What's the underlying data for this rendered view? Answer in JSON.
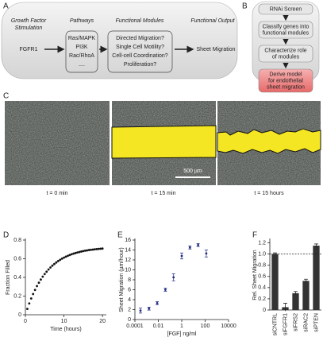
{
  "panel_labels": [
    "A",
    "B",
    "C",
    "D",
    "E",
    "F"
  ],
  "panel_a": {
    "stimulation_title": [
      "Growth Factor",
      "Stimulation"
    ],
    "receptor": "FGFR1",
    "pathways_title": "Pathways",
    "pathways": [
      "Ras/MAPK",
      "PI3K",
      "Rac/RhoA",
      "...."
    ],
    "modules_title": "Functional Modules",
    "modules": [
      "Directed Migration?",
      "Single Cell Motility?",
      "Cell-cell Coordination?",
      "Proliferation?"
    ],
    "output_title": "Functional Output",
    "output": "Sheet Migration"
  },
  "panel_b": {
    "steps": [
      [
        "RNAi Screen"
      ],
      [
        "Classify genes into",
        "functional modules"
      ],
      [
        "Characterize role",
        "of modules"
      ],
      [
        "Derive model",
        "for endothelial",
        "sheet migration"
      ]
    ]
  },
  "panel_c": {
    "times": [
      "t = 0 min",
      "t = 15 min",
      "t = 15 hours"
    ],
    "scale_bar": "500 µm"
  },
  "chart_data": [
    {
      "type": "scatter",
      "x_label": "Time (hours)",
      "y_label": "Fraction Filled",
      "color": "#111",
      "x": [
        0.5,
        1,
        1.5,
        2,
        2.5,
        3,
        3.5,
        4,
        4.5,
        5,
        5.5,
        6,
        6.5,
        7,
        7.5,
        8,
        8.5,
        9,
        9.5,
        10,
        10.5,
        11,
        11.5,
        12,
        12.5,
        13,
        13.5,
        14,
        14.5,
        15,
        15.5,
        16,
        16.5,
        17,
        17.5,
        18,
        18.5,
        19,
        19.5,
        20
      ],
      "values": [
        0.063,
        0.121,
        0.174,
        0.222,
        0.266,
        0.307,
        0.343,
        0.377,
        0.408,
        0.436,
        0.461,
        0.485,
        0.506,
        0.526,
        0.543,
        0.56,
        0.575,
        0.588,
        0.601,
        0.612,
        0.622,
        0.631,
        0.64,
        0.648,
        0.655,
        0.661,
        0.667,
        0.672,
        0.677,
        0.682,
        0.686,
        0.689,
        0.693,
        0.696,
        0.698,
        0.701,
        0.703,
        0.705,
        0.707,
        0.709
      ],
      "xlim": [
        0,
        21
      ],
      "xticks": [
        0,
        10,
        20
      ],
      "ylim": [
        0,
        0.8
      ],
      "yticks": [
        0,
        0.2,
        0.4,
        0.6,
        0.8
      ]
    },
    {
      "type": "scatter",
      "x_label": "[FGF] ng/ml",
      "y_label": "Sheet Migration (µm/hour)",
      "color": "#1f2a80",
      "x_scale": "log",
      "x": [
        0.0003,
        0.0016,
        0.008,
        0.04,
        0.2,
        1,
        5,
        25,
        125
      ],
      "values": [
        1.8,
        2.2,
        3.3,
        6.0,
        8.5,
        12.8,
        14.5,
        15.0,
        13.3
      ],
      "errors": [
        0.5,
        0.3,
        0.3,
        0.3,
        0.7,
        0.6,
        0.3,
        0.3,
        0.7
      ],
      "xlim": [
        0.0001,
        10000
      ],
      "xticks": [
        0.0001,
        0.01,
        1,
        100,
        10000
      ],
      "ylim": [
        0,
        16
      ],
      "yticks": [
        0,
        2,
        4,
        6,
        8,
        10,
        12,
        14,
        16
      ]
    },
    {
      "type": "bar",
      "y_label": "Rel. Sheet Migration",
      "color": "#333",
      "categories": [
        "siCNTRL",
        "siFGFR1",
        "siFRS2",
        "siRAC2",
        "siPTEN"
      ],
      "values": [
        1.0,
        0.05,
        0.3,
        0.52,
        1.15
      ],
      "errors": [
        0.02,
        0.07,
        0.03,
        0.03,
        0.03
      ],
      "reference_line": 1,
      "ylim": [
        0,
        1.25
      ],
      "yticks": [
        0,
        0.2,
        0.4,
        0.6,
        0.8,
        {
          "value": 1,
          "label": "1.0"
        },
        1.2
      ]
    }
  ]
}
